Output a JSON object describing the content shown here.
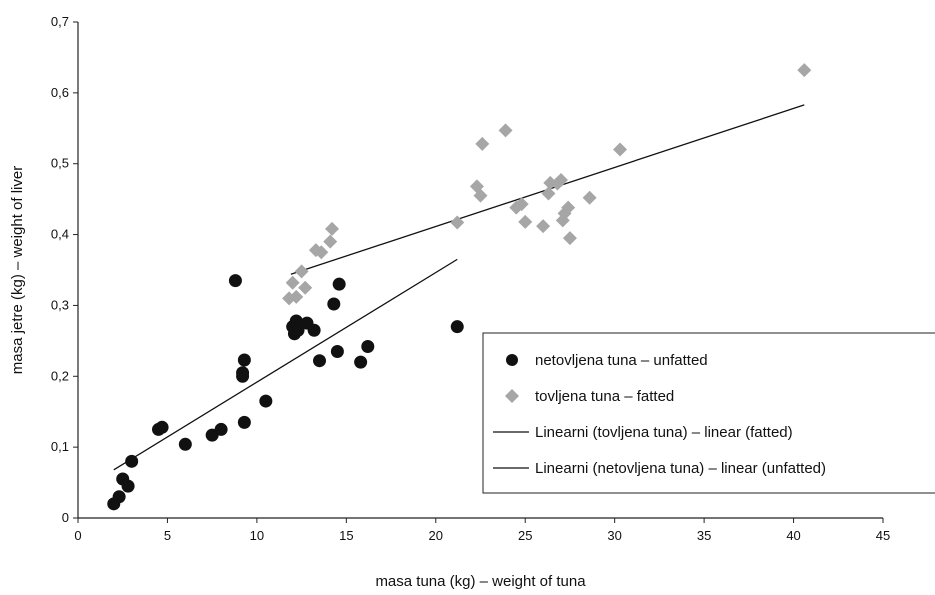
{
  "chart_data": {
    "type": "scatter",
    "xlabel": "masa tuna (kg) – weight of tuna",
    "ylabel": "masa jetre (kg) – weight of liver",
    "xlim": [
      0,
      45
    ],
    "ylim": [
      0,
      0.7
    ],
    "xticks": [
      0,
      5,
      10,
      15,
      20,
      25,
      30,
      35,
      40,
      45
    ],
    "xtick_labels": [
      "0",
      "5",
      "10",
      "15",
      "20",
      "25",
      "30",
      "35",
      "40",
      "45"
    ],
    "yticks": [
      0,
      0.1,
      0.2,
      0.3,
      0.4,
      0.5,
      0.6,
      0.7
    ],
    "ytick_labels": [
      "0",
      "0,1",
      "0,2",
      "0,3",
      "0,4",
      "0,5",
      "0,6",
      "0,7"
    ],
    "grid": false,
    "legend_position": "bottom-right",
    "series": [
      {
        "name": "netovljena tuna – unfatted",
        "marker": "circle",
        "color": "#111111",
        "points": [
          [
            2.0,
            0.02
          ],
          [
            2.3,
            0.03
          ],
          [
            2.5,
            0.055
          ],
          [
            2.8,
            0.045
          ],
          [
            3.0,
            0.08
          ],
          [
            4.5,
            0.125
          ],
          [
            4.7,
            0.128
          ],
          [
            6.0,
            0.104
          ],
          [
            7.5,
            0.117
          ],
          [
            8.0,
            0.125
          ],
          [
            8.8,
            0.335
          ],
          [
            9.2,
            0.2
          ],
          [
            9.2,
            0.205
          ],
          [
            9.3,
            0.223
          ],
          [
            9.3,
            0.135
          ],
          [
            10.5,
            0.165
          ],
          [
            12.0,
            0.27
          ],
          [
            12.1,
            0.26
          ],
          [
            12.2,
            0.278
          ],
          [
            12.3,
            0.265
          ],
          [
            12.8,
            0.275
          ],
          [
            13.2,
            0.265
          ],
          [
            13.5,
            0.222
          ],
          [
            14.3,
            0.302
          ],
          [
            14.5,
            0.235
          ],
          [
            14.6,
            0.33
          ],
          [
            15.8,
            0.22
          ],
          [
            16.2,
            0.242
          ],
          [
            21.2,
            0.27
          ]
        ]
      },
      {
        "name": "tovljena tuna – fatted",
        "marker": "diamond",
        "color": "#a6a6a6",
        "points": [
          [
            11.8,
            0.31
          ],
          [
            12.0,
            0.332
          ],
          [
            12.2,
            0.312
          ],
          [
            12.5,
            0.348
          ],
          [
            12.7,
            0.325
          ],
          [
            13.3,
            0.378
          ],
          [
            13.6,
            0.375
          ],
          [
            14.1,
            0.39
          ],
          [
            14.2,
            0.408
          ],
          [
            21.2,
            0.417
          ],
          [
            22.3,
            0.468
          ],
          [
            22.5,
            0.455
          ],
          [
            22.6,
            0.528
          ],
          [
            23.9,
            0.547
          ],
          [
            24.5,
            0.438
          ],
          [
            24.8,
            0.443
          ],
          [
            25.0,
            0.418
          ],
          [
            26.0,
            0.412
          ],
          [
            26.3,
            0.458
          ],
          [
            26.4,
            0.473
          ],
          [
            26.8,
            0.472
          ],
          [
            27.0,
            0.477
          ],
          [
            27.1,
            0.42
          ],
          [
            27.2,
            0.43
          ],
          [
            27.4,
            0.438
          ],
          [
            27.5,
            0.395
          ],
          [
            28.6,
            0.452
          ],
          [
            30.3,
            0.52
          ],
          [
            40.6,
            0.632
          ]
        ]
      }
    ],
    "trendlines": [
      {
        "name": "Linearni (tovljena tuna) – linear (fatted)",
        "color": "#111111",
        "x": [
          11.9,
          40.6
        ],
        "y": [
          0.344,
          0.583
        ]
      },
      {
        "name": "Linearni (netovljena tuna) – linear (unfatted)",
        "color": "#111111",
        "x": [
          2.0,
          21.2
        ],
        "y": [
          0.068,
          0.365
        ]
      }
    ]
  }
}
